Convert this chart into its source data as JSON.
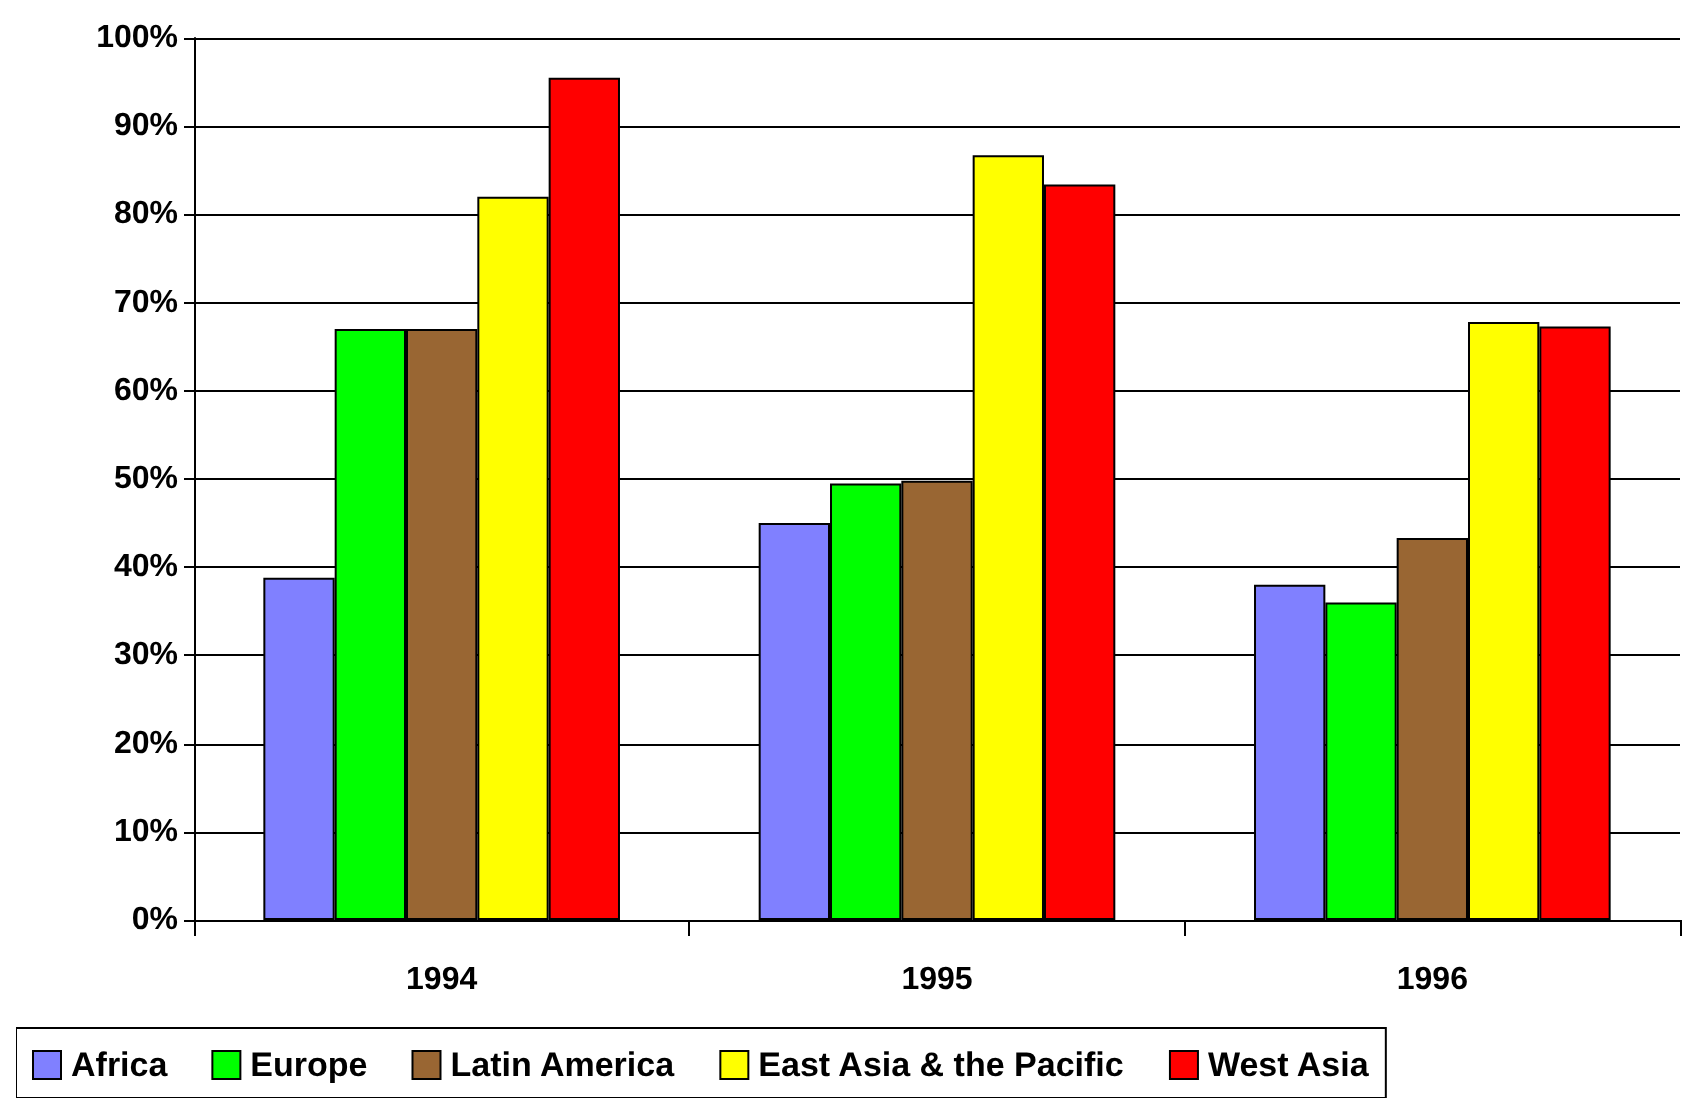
{
  "chart_data": {
    "type": "bar",
    "categories": [
      "1994",
      "1995",
      "1996"
    ],
    "series": [
      {
        "name": "Africa",
        "color": "#8080ff",
        "values": [
          38.8,
          45,
          38
        ]
      },
      {
        "name": "Europe",
        "color": "#00ff00",
        "values": [
          67,
          49.5,
          36
        ]
      },
      {
        "name": "Latin America",
        "color": "#996633",
        "values": [
          67,
          49.8,
          43.3
        ]
      },
      {
        "name": "East Asia & the Pacific",
        "color": "#ffff00",
        "values": [
          82,
          86.7,
          67.8
        ]
      },
      {
        "name": "West Asia",
        "color": "#ff0000",
        "values": [
          95.5,
          83.4,
          67.3
        ]
      }
    ],
    "ylim": [
      0,
      100
    ],
    "yticks": [
      {
        "value": 0,
        "label": "0%"
      },
      {
        "value": 10,
        "label": "10%"
      },
      {
        "value": 20,
        "label": "20%"
      },
      {
        "value": 30,
        "label": "30%"
      },
      {
        "value": 40,
        "label": "40%"
      },
      {
        "value": 50,
        "label": "50%"
      },
      {
        "value": 60,
        "label": "60%"
      },
      {
        "value": 70,
        "label": "70%"
      },
      {
        "value": 80,
        "label": "80%"
      },
      {
        "value": 90,
        "label": "90%"
      },
      {
        "value": 100,
        "label": "100%"
      }
    ],
    "grid": "y",
    "legend": "bottom"
  }
}
